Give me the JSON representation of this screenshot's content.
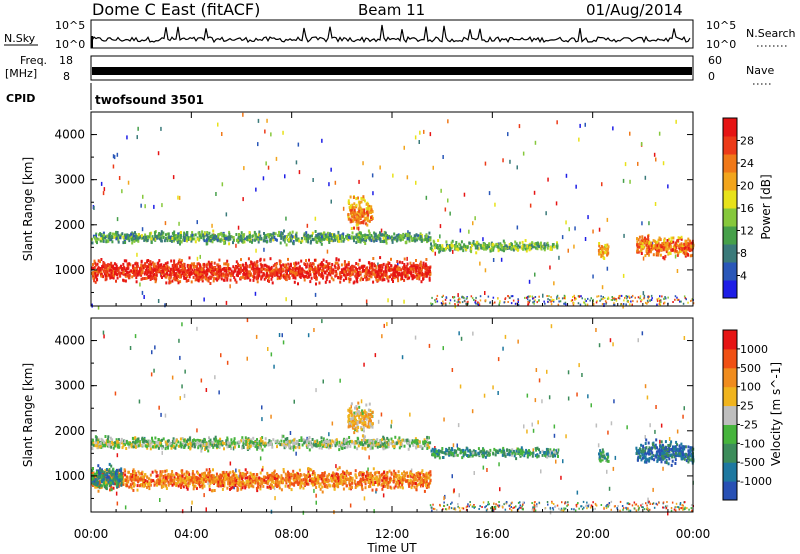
{
  "header": {
    "radar": "Dome C East (fitACF)",
    "beam": "Beam 11",
    "date": "01/Aug/2014"
  },
  "strips": {
    "nsky": {
      "label": "N.Sky",
      "ticks": [
        "10^5",
        "10^0"
      ]
    },
    "nsearch": {
      "label": "N.Search",
      "ticks": [
        "10^5",
        "10^0"
      ]
    },
    "freq": {
      "label_line1": "Freq.",
      "label_line2": "[MHz]",
      "ticks": [
        "18",
        "8"
      ]
    },
    "nave": {
      "label": "Nave",
      "ticks": [
        "60",
        "0"
      ]
    },
    "cpid": {
      "label": "CPID",
      "value": "twofsound 3501"
    }
  },
  "chart_data": [
    {
      "type": "heatmap",
      "name": "power",
      "ylabel": "Slant Range [km]",
      "yticks": [
        "4000",
        "3000",
        "2000",
        "1000"
      ],
      "ylim": [
        200,
        4500
      ],
      "xlim_hours": [
        0,
        24
      ],
      "colorbar": {
        "label": "Power [dB]",
        "ticks": [
          "28",
          "24",
          "20",
          "16",
          "12",
          "8",
          "4"
        ],
        "colors": [
          "#1e1ee6",
          "#2a57b8",
          "#3a7a7a",
          "#46a04a",
          "#86c83c",
          "#e8e21a",
          "#f2a51c",
          "#f07818",
          "#ec3a18",
          "#e61414"
        ]
      },
      "regions": [
        {
          "from_h": 0.0,
          "to_h": 13.5,
          "center_km": 1000,
          "width_km": 650,
          "level": 0.9
        },
        {
          "from_h": 0.0,
          "to_h": 13.5,
          "center_km": 1750,
          "width_km": 350,
          "level": 0.35
        },
        {
          "from_h": 10.2,
          "to_h": 11.2,
          "center_km": 2300,
          "width_km": 900,
          "level": 0.7
        },
        {
          "from_h": 13.5,
          "to_h": 18.6,
          "center_km": 1550,
          "width_km": 300,
          "level": 0.4
        },
        {
          "from_h": 20.2,
          "to_h": 20.6,
          "center_km": 1450,
          "width_km": 450,
          "level": 0.65
        },
        {
          "from_h": 21.7,
          "to_h": 24.0,
          "center_km": 1550,
          "width_km": 650,
          "level": 0.75
        }
      ]
    },
    {
      "type": "heatmap",
      "name": "velocity",
      "ylabel": "Slant Range [km]",
      "yticks": [
        "4000",
        "3000",
        "2000",
        "1000"
      ],
      "ylim": [
        200,
        4500
      ],
      "xlim_hours": [
        0,
        24
      ],
      "colorbar": {
        "label": "Velocity [m s^-1]",
        "ticks": [
          "1000",
          "500",
          "100",
          "25",
          "-25",
          "-100",
          "-500",
          "-1000"
        ],
        "colors": [
          "#2850b4",
          "#1e78a0",
          "#3c8c5a",
          "#46b43c",
          "#bebebe",
          "#f0b41e",
          "#f08c1e",
          "#f05014",
          "#e61414"
        ]
      },
      "regions": [
        {
          "from_h": 0.0,
          "to_h": 13.5,
          "center_km": 950,
          "width_km": 600,
          "level": 0.75
        },
        {
          "from_h": 0.0,
          "to_h": 1.2,
          "center_km": 1000,
          "width_km": 700,
          "level": 0.25
        },
        {
          "from_h": 0.0,
          "to_h": 13.5,
          "center_km": 1750,
          "width_km": 350,
          "level": 0.45
        },
        {
          "from_h": 10.2,
          "to_h": 11.2,
          "center_km": 2300,
          "width_km": 900,
          "level": 0.6
        },
        {
          "from_h": 13.5,
          "to_h": 18.6,
          "center_km": 1550,
          "width_km": 300,
          "level": 0.3
        },
        {
          "from_h": 20.2,
          "to_h": 20.6,
          "center_km": 1450,
          "width_km": 450,
          "level": 0.3
        },
        {
          "from_h": 21.7,
          "to_h": 24.0,
          "center_km": 1550,
          "width_km": 650,
          "level": 0.15
        }
      ]
    }
  ],
  "xaxis": {
    "label": "Time UT",
    "ticks": [
      "00:00",
      "04:00",
      "08:00",
      "12:00",
      "16:00",
      "20:00",
      "00:00"
    ]
  }
}
